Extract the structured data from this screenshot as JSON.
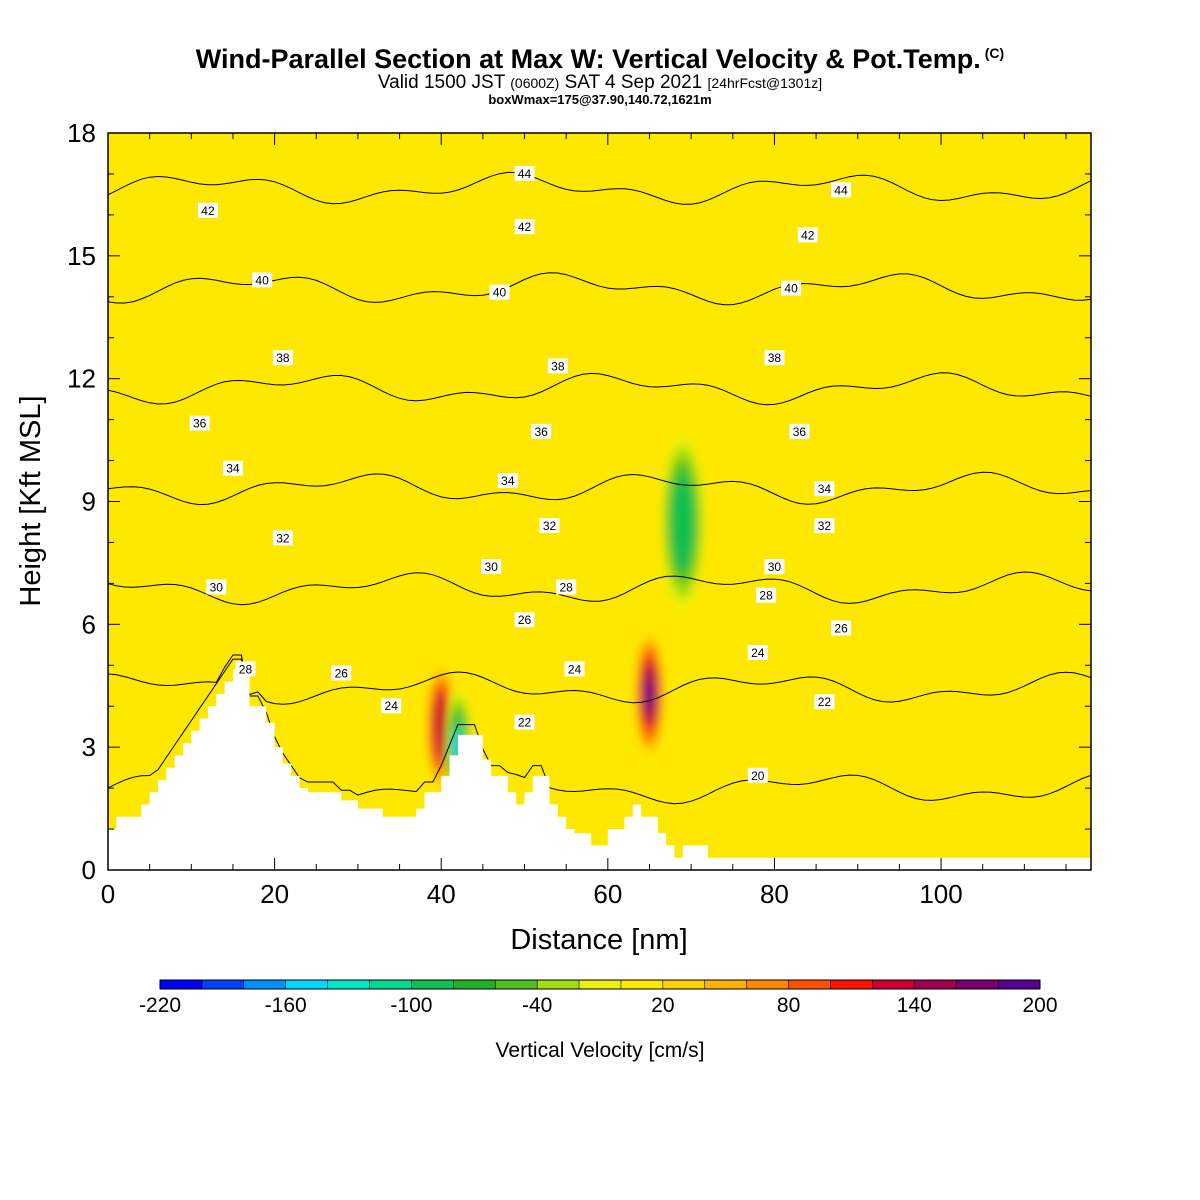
{
  "header": {
    "title": "Wind-Parallel Section at Max W: Vertical Velocity & Pot.Temp.",
    "title_mark": "(C)",
    "valid_pre": "Valid 1500 JST",
    "valid_utc": "(0600Z)",
    "valid_post": "SAT 4 Sep 2021",
    "fcst": "[24hrFcst@1301z]",
    "box": "boxWmax=175@37.90,140.72,1621m"
  },
  "chart_data": {
    "type": "heatmap",
    "title": "Wind-Parallel Section at Max W: Vertical Velocity & Pot.Temp.",
    "xlabel": "Distance [nm]",
    "ylabel": "Height [Kft MSL]",
    "xlim": [
      0,
      118
    ],
    "ylim": [
      0,
      18
    ],
    "xticks": [
      0,
      20,
      40,
      60,
      80,
      100
    ],
    "yticks": [
      0,
      3,
      6,
      9,
      12,
      15,
      18
    ],
    "colorbar": {
      "title": "Vertical Velocity [cm/s]",
      "range": [
        -220,
        200
      ],
      "step": 20,
      "labels": [
        -220,
        -160,
        -100,
        -40,
        20,
        80,
        140,
        200
      ],
      "colors": [
        "#0000ff",
        "#0040ff",
        "#0090ff",
        "#00d8ff",
        "#00e8c8",
        "#00d890",
        "#10c050",
        "#22b028",
        "#50c020",
        "#a0dc10",
        "#ecf010",
        "#ffe800",
        "#ffd000",
        "#ffb000",
        "#ff8800",
        "#ff5000",
        "#ff1000",
        "#cc0030",
        "#a00050",
        "#7a0070",
        "#5a0090"
      ],
      "position": "bottom"
    },
    "theta_contours": {
      "unit": "potential temperature",
      "levels": [
        20,
        22,
        24,
        26,
        28,
        30,
        32,
        34,
        36,
        38,
        40,
        42,
        44
      ],
      "labels": [
        {
          "text": "44",
          "x": 50,
          "y": 17.0
        },
        {
          "text": "44",
          "x": 88,
          "y": 16.6
        },
        {
          "text": "42",
          "x": 12,
          "y": 16.1
        },
        {
          "text": "42",
          "x": 50,
          "y": 15.7
        },
        {
          "text": "42",
          "x": 84,
          "y": 15.5
        },
        {
          "text": "40",
          "x": 18.5,
          "y": 14.4
        },
        {
          "text": "40",
          "x": 47,
          "y": 14.1
        },
        {
          "text": "40",
          "x": 82,
          "y": 14.2
        },
        {
          "text": "38",
          "x": 21,
          "y": 12.5
        },
        {
          "text": "38",
          "x": 54,
          "y": 12.3
        },
        {
          "text": "38",
          "x": 80,
          "y": 12.5
        },
        {
          "text": "36",
          "x": 11,
          "y": 10.9
        },
        {
          "text": "36",
          "x": 52,
          "y": 10.7
        },
        {
          "text": "36",
          "x": 83,
          "y": 10.7
        },
        {
          "text": "34",
          "x": 15,
          "y": 9.8
        },
        {
          "text": "34",
          "x": 48,
          "y": 9.5
        },
        {
          "text": "34",
          "x": 86,
          "y": 9.3
        },
        {
          "text": "32",
          "x": 21,
          "y": 8.1
        },
        {
          "text": "32",
          "x": 53,
          "y": 8.4
        },
        {
          "text": "32",
          "x": 86,
          "y": 8.4
        },
        {
          "text": "30",
          "x": 13,
          "y": 6.9
        },
        {
          "text": "30",
          "x": 46,
          "y": 7.4
        },
        {
          "text": "30",
          "x": 80,
          "y": 7.4
        },
        {
          "text": "28",
          "x": 55,
          "y": 6.9
        },
        {
          "text": "28",
          "x": 79,
          "y": 6.7
        },
        {
          "text": "28",
          "x": 16.5,
          "y": 4.9
        },
        {
          "text": "26",
          "x": 50,
          "y": 6.1
        },
        {
          "text": "26",
          "x": 88,
          "y": 5.9
        },
        {
          "text": "26",
          "x": 28,
          "y": 4.8
        },
        {
          "text": "24",
          "x": 56,
          "y": 4.9
        },
        {
          "text": "24",
          "x": 78,
          "y": 5.3
        },
        {
          "text": "24",
          "x": 34,
          "y": 4.0
        },
        {
          "text": "22",
          "x": 50,
          "y": 3.6
        },
        {
          "text": "22",
          "x": 86,
          "y": 4.1
        },
        {
          "text": "20",
          "x": 78,
          "y": 2.3
        }
      ]
    },
    "features": [
      {
        "name": "max updraft",
        "x": 65,
        "y": 4.3,
        "value": 190
      },
      {
        "name": "updraft",
        "x": 40,
        "y": 3.5,
        "value": 130
      },
      {
        "name": "downdraft band",
        "x": 69,
        "y": 8.5,
        "value": -90
      },
      {
        "name": "downdraft",
        "x": 42,
        "y": 3.0,
        "value": -150
      }
    ],
    "terrain": [
      [
        0,
        1
      ],
      [
        1,
        1
      ],
      [
        1,
        1.3
      ],
      [
        4,
        1.3
      ],
      [
        4,
        1.6
      ],
      [
        5,
        1.6
      ],
      [
        5,
        1.9
      ],
      [
        6,
        1.9
      ],
      [
        6,
        2.2
      ],
      [
        7,
        2.2
      ],
      [
        7,
        2.5
      ],
      [
        8,
        2.5
      ],
      [
        8,
        2.8
      ],
      [
        9,
        2.8
      ],
      [
        9,
        3.1
      ],
      [
        10,
        3.1
      ],
      [
        10,
        3.4
      ],
      [
        11,
        3.4
      ],
      [
        11,
        3.7
      ],
      [
        12,
        3.7
      ],
      [
        12,
        4.0
      ],
      [
        13,
        4.0
      ],
      [
        13,
        4.3
      ],
      [
        14,
        4.3
      ],
      [
        14,
        4.6
      ],
      [
        15,
        4.6
      ],
      [
        15,
        4.9
      ],
      [
        17,
        4.9
      ],
      [
        17,
        4.0
      ],
      [
        19,
        4.0
      ],
      [
        19,
        3.6
      ],
      [
        20,
        3.6
      ],
      [
        20,
        3.0
      ],
      [
        21,
        3.0
      ],
      [
        21,
        2.6
      ],
      [
        22,
        2.6
      ],
      [
        22,
        2.3
      ],
      [
        23,
        2.3
      ],
      [
        23,
        2.0
      ],
      [
        24,
        2.0
      ],
      [
        24,
        1.9
      ],
      [
        28,
        1.9
      ],
      [
        28,
        1.7
      ],
      [
        30,
        1.7
      ],
      [
        30,
        1.5
      ],
      [
        33,
        1.5
      ],
      [
        33,
        1.3
      ],
      [
        37,
        1.3
      ],
      [
        37,
        1.5
      ],
      [
        38,
        1.5
      ],
      [
        38,
        1.9
      ],
      [
        40,
        1.9
      ],
      [
        40,
        2.3
      ],
      [
        41,
        2.3
      ],
      [
        41,
        2.8
      ],
      [
        42,
        2.8
      ],
      [
        42,
        3.3
      ],
      [
        45,
        3.3
      ],
      [
        45,
        2.7
      ],
      [
        46,
        2.7
      ],
      [
        46,
        2.3
      ],
      [
        48,
        2.3
      ],
      [
        48,
        1.9
      ],
      [
        49,
        1.9
      ],
      [
        49,
        1.6
      ],
      [
        50,
        1.6
      ],
      [
        50,
        1.9
      ],
      [
        51,
        1.9
      ],
      [
        51,
        2.3
      ],
      [
        53,
        2.3
      ],
      [
        53,
        1.6
      ],
      [
        54,
        1.6
      ],
      [
        54,
        1.3
      ],
      [
        55,
        1.3
      ],
      [
        55,
        1.0
      ],
      [
        56,
        1.0
      ],
      [
        56,
        0.9
      ],
      [
        58,
        0.9
      ],
      [
        58,
        0.6
      ],
      [
        60,
        0.6
      ],
      [
        60,
        1.0
      ],
      [
        62,
        1.0
      ],
      [
        62,
        1.3
      ],
      [
        63,
        1.3
      ],
      [
        63,
        1.6
      ],
      [
        64,
        1.6
      ],
      [
        64,
        1.3
      ],
      [
        66,
        1.3
      ],
      [
        66,
        0.9
      ],
      [
        67,
        0.9
      ],
      [
        67,
        0.6
      ],
      [
        68,
        0.6
      ],
      [
        68,
        0.3
      ],
      [
        69,
        0.3
      ],
      [
        69,
        0.6
      ],
      [
        72,
        0.6
      ],
      [
        72,
        0.3
      ],
      [
        118,
        0.3
      ]
    ]
  }
}
